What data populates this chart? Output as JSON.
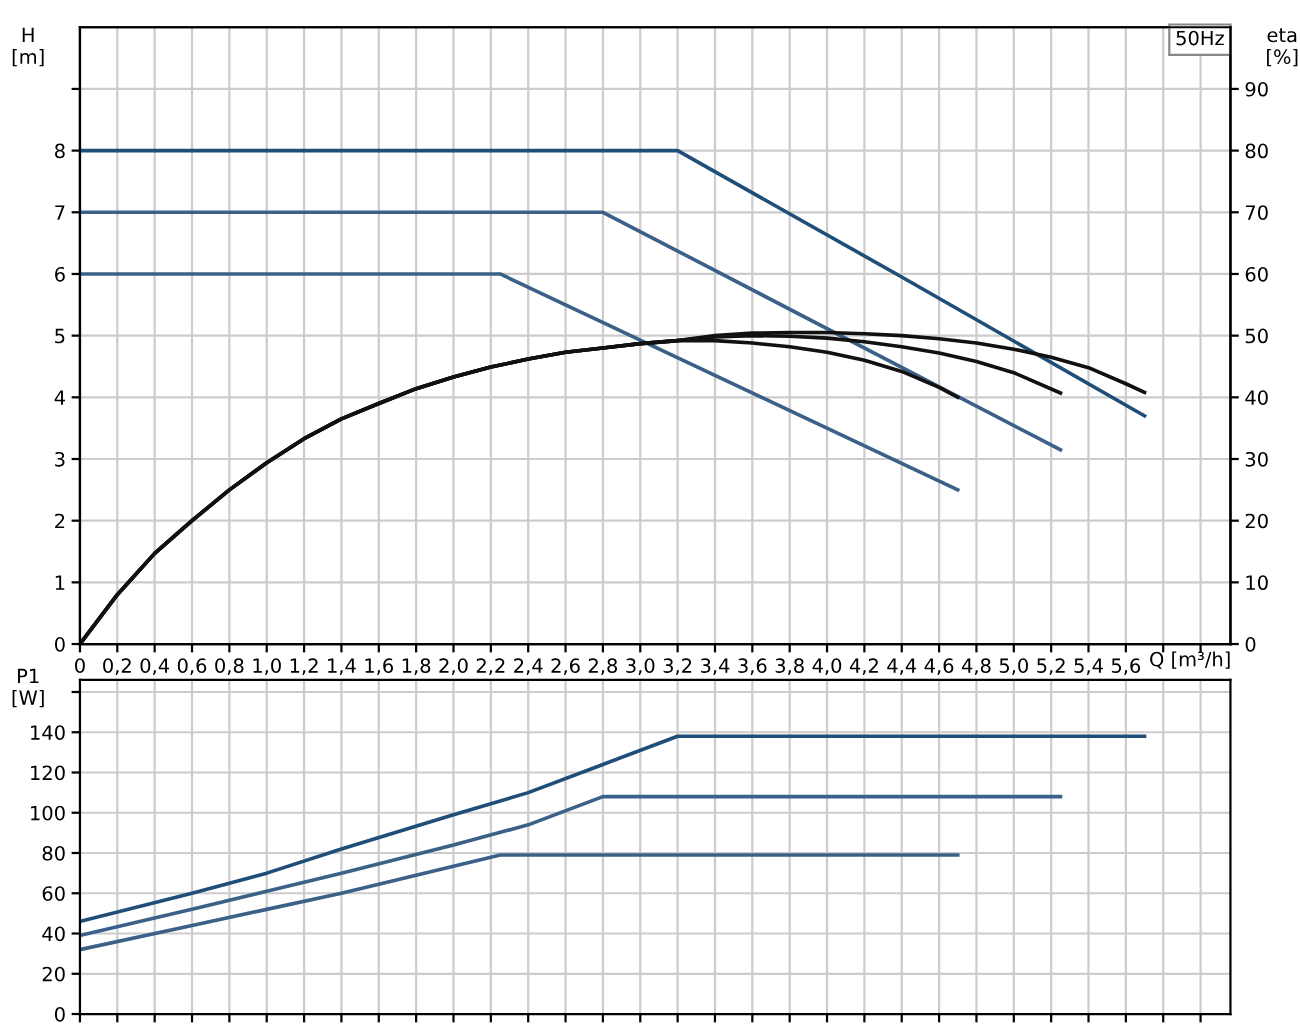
{
  "chart_data": [
    {
      "type": "line",
      "title": "50Hz",
      "xlabel": "Q [m³/h]",
      "ylabel": "H\n[m]",
      "y2label": "eta\n[%]",
      "grid": true,
      "legend": false,
      "marker": "none",
      "line_style": "solid",
      "xlim": [
        0,
        6.16
      ],
      "xticks": [
        0,
        {
          "value": 0.2,
          "label": "0,2"
        },
        {
          "value": 0.4,
          "label": "0,4"
        },
        {
          "value": 0.6,
          "label": "0,6"
        },
        {
          "value": 0.8,
          "label": "0,8"
        },
        {
          "value": 1.0,
          "label": "1,0"
        },
        {
          "value": 1.2,
          "label": "1,2"
        },
        {
          "value": 1.4,
          "label": "1,4"
        },
        {
          "value": 1.6,
          "label": "1,6"
        },
        {
          "value": 1.8,
          "label": "1,8"
        },
        {
          "value": 2.0,
          "label": "2,0"
        },
        {
          "value": 2.2,
          "label": "2,2"
        },
        {
          "value": 2.4,
          "label": "2,4"
        },
        {
          "value": 2.6,
          "label": "2,6"
        },
        {
          "value": 2.8,
          "label": "2,8"
        },
        {
          "value": 3.0,
          "label": "3,0"
        },
        {
          "value": 3.2,
          "label": "3,2"
        },
        {
          "value": 3.4,
          "label": "3,4"
        },
        {
          "value": 3.6,
          "label": "3,6"
        },
        {
          "value": 3.8,
          "label": "3,8"
        },
        {
          "value": 4.0,
          "label": "4,0"
        },
        {
          "value": 4.2,
          "label": "4,2"
        },
        {
          "value": 4.4,
          "label": "4,4"
        },
        {
          "value": 4.6,
          "label": "4,6"
        },
        {
          "value": 4.8,
          "label": "4,8"
        },
        {
          "value": 5.0,
          "label": "5,0"
        },
        {
          "value": 5.2,
          "label": "5,2"
        },
        {
          "value": 5.4,
          "label": "5,4"
        },
        {
          "value": 5.6,
          "label": "5,6"
        },
        {
          "value": 5.8,
          "label": null
        },
        {
          "value": 6.0,
          "label": null
        }
      ],
      "ylim": [
        0,
        10
      ],
      "yticks": [
        0,
        1,
        2,
        3,
        4,
        5,
        6,
        7,
        8,
        {
          "value": 9,
          "label": null
        }
      ],
      "y2lim": [
        0,
        100
      ],
      "y2ticks": [
        0,
        10,
        20,
        30,
        40,
        50,
        60,
        70,
        80,
        90
      ],
      "series": [
        {
          "color": "#1f4e79",
          "x": [
            0,
            3.2,
            4.4,
            5.7
          ],
          "values": [
            8,
            8,
            5.95,
            3.7
          ]
        },
        {
          "color": "#3b6189",
          "x": [
            0,
            2.8,
            5.25
          ],
          "values": [
            7,
            7,
            3.15
          ]
        },
        {
          "color": "#3b6189",
          "x": [
            0,
            2.25,
            4.7
          ],
          "values": [
            6,
            6,
            2.5
          ]
        },
        {
          "color": "#111111",
          "axis": "y2",
          "x": [
            0,
            0.2,
            0.4,
            0.6,
            0.8,
            1.0,
            1.2,
            1.4,
            1.6,
            1.8,
            2.0,
            2.2,
            2.4,
            2.6,
            2.8,
            3.0,
            3.2,
            3.4,
            3.6,
            3.8,
            4.0,
            4.2,
            4.4,
            4.6,
            4.8,
            5.0,
            5.2,
            5.4,
            5.6,
            5.7
          ],
          "values": [
            0,
            8,
            14.7,
            20,
            25,
            29.4,
            33.3,
            36.5,
            39,
            41.4,
            43.3,
            44.9,
            46.2,
            47.3,
            48,
            48.7,
            49.2,
            50,
            50.4,
            50.5,
            50.5,
            50.3,
            50,
            49.5,
            48.8,
            47.8,
            46.5,
            44.8,
            42.2,
            40.8
          ]
        },
        {
          "color": "#111111",
          "axis": "y2",
          "x": [
            0,
            0.2,
            0.4,
            0.6,
            0.8,
            1.0,
            1.2,
            1.4,
            1.6,
            1.8,
            2.0,
            2.2,
            2.4,
            2.6,
            2.8,
            3.0,
            3.2,
            3.4,
            3.6,
            3.8,
            4.0,
            4.2,
            4.4,
            4.6,
            4.8,
            5.0,
            5.25
          ],
          "values": [
            0,
            8,
            14.7,
            20,
            25,
            29.4,
            33.3,
            36.5,
            39,
            41.4,
            43.3,
            44.9,
            46.2,
            47.3,
            48,
            48.7,
            49.2,
            49.8,
            50,
            49.9,
            49.6,
            49,
            48.2,
            47.2,
            45.8,
            44,
            40.7
          ]
        },
        {
          "color": "#111111",
          "axis": "y2",
          "x": [
            0,
            0.2,
            0.4,
            0.6,
            0.8,
            1.0,
            1.2,
            1.4,
            1.6,
            1.8,
            2.0,
            2.2,
            2.4,
            2.6,
            2.8,
            3.0,
            3.2,
            3.4,
            3.6,
            3.8,
            4.0,
            4.2,
            4.4,
            4.6,
            4.7
          ],
          "values": [
            0,
            8,
            14.7,
            20,
            25,
            29.4,
            33.3,
            36.5,
            39,
            41.4,
            43.3,
            44.9,
            46.2,
            47.3,
            48,
            48.7,
            49.2,
            49.2,
            48.8,
            48.2,
            47.3,
            46,
            44.2,
            41.6,
            40
          ]
        }
      ]
    },
    {
      "type": "line",
      "ylabel": "P1\n[W]",
      "grid": true,
      "legend": false,
      "marker": "none",
      "line_style": "solid",
      "tick_labels": "y",
      "xlim": [
        0,
        6.16
      ],
      "xticks": [
        0,
        0.2,
        0.4,
        0.6,
        0.8,
        1.0,
        1.2,
        1.4,
        1.6,
        1.8,
        2.0,
        2.2,
        2.4,
        2.6,
        2.8,
        3.0,
        3.2,
        3.4,
        3.6,
        3.8,
        4.0,
        4.2,
        4.4,
        4.6,
        4.8,
        5.0,
        5.2,
        5.4,
        5.6,
        5.8,
        6.0
      ],
      "ylim": [
        0,
        166
      ],
      "yticks": [
        0,
        20,
        40,
        60,
        80,
        100,
        120,
        140,
        {
          "value": 160,
          "label": null
        }
      ],
      "series": [
        {
          "color": "#1f4e79",
          "x": [
            0,
            0.6,
            1.0,
            1.4,
            2.0,
            2.4,
            2.8,
            3.2,
            5.7
          ],
          "values": [
            46,
            60,
            70,
            82,
            99,
            110,
            124,
            138,
            138
          ]
        },
        {
          "color": "#3b6189",
          "x": [
            0,
            0.6,
            1.0,
            1.4,
            2.0,
            2.4,
            2.8,
            5.25
          ],
          "values": [
            39,
            52,
            61,
            70,
            84,
            94,
            108,
            108
          ]
        },
        {
          "color": "#3b6189",
          "x": [
            0,
            0.6,
            1.0,
            1.4,
            1.8,
            2.25,
            4.7
          ],
          "values": [
            32,
            44,
            52,
            60,
            69,
            79,
            79
          ]
        }
      ]
    }
  ]
}
